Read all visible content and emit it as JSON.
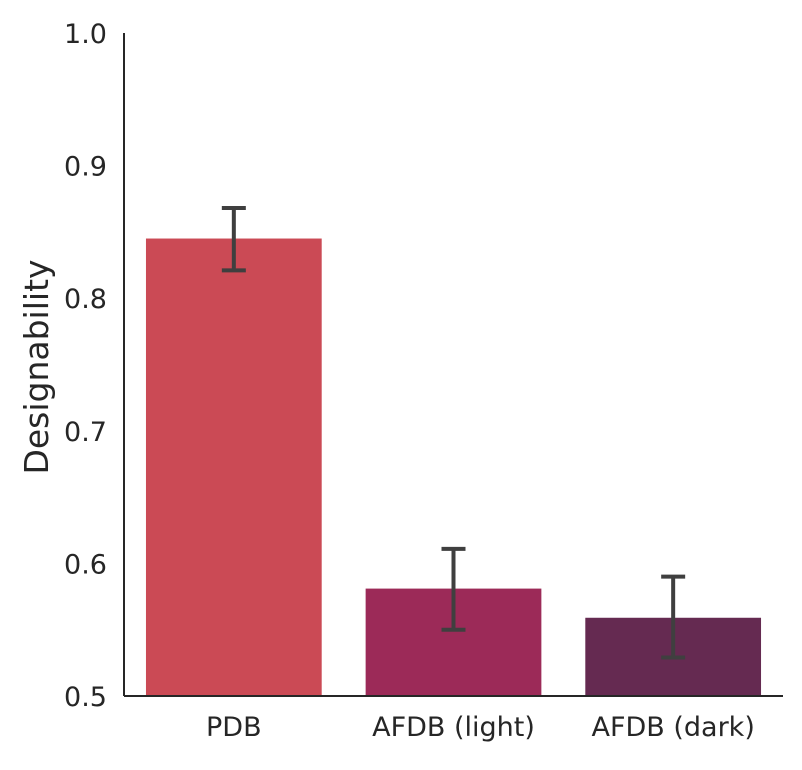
{
  "chart_data": {
    "type": "bar",
    "title": "",
    "xlabel": "",
    "ylabel": "Designability",
    "ylim": [
      0.5,
      1.0
    ],
    "yticks": [
      "0.5",
      "0.6",
      "0.7",
      "0.8",
      "0.9",
      "1.0"
    ],
    "grid": false,
    "categories": [
      "PDB",
      "AFDB (light)",
      "AFDB (dark)"
    ],
    "values": [
      0.845,
      0.581,
      0.559
    ],
    "error_low": [
      0.821,
      0.55,
      0.529
    ],
    "error_high": [
      0.868,
      0.611,
      0.59
    ],
    "colors": [
      "#cb4a55",
      "#9c2a58",
      "#652a51"
    ],
    "error_color": "#3f3f3f"
  }
}
